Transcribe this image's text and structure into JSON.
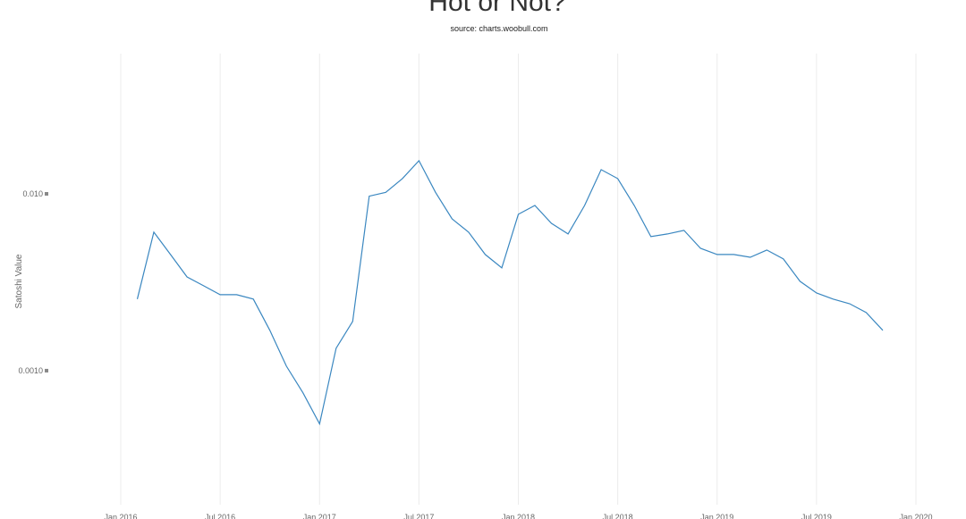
{
  "chart_data": {
    "type": "line",
    "title": "Hot or Not?",
    "subtitle": "source: charts.woobull.com",
    "y_label": "Satoshi Value",
    "y_scale": "log",
    "grid": true,
    "x": [
      "2016-02",
      "2016-03",
      "2016-04",
      "2016-05",
      "2016-06",
      "2016-07",
      "2016-08",
      "2016-09",
      "2016-10",
      "2016-11",
      "2016-12",
      "2017-01",
      "2017-02",
      "2017-03",
      "2017-04",
      "2017-05",
      "2017-06",
      "2017-07",
      "2017-08",
      "2017-09",
      "2017-10",
      "2017-11",
      "2017-12",
      "2018-01",
      "2018-02",
      "2018-03",
      "2018-04",
      "2018-05",
      "2018-06",
      "2018-07",
      "2018-08",
      "2018-09",
      "2018-10",
      "2018-11",
      "2018-12",
      "2019-01",
      "2019-02",
      "2019-03",
      "2019-04",
      "2019-05",
      "2019-06",
      "2019-07",
      "2019-08",
      "2019-09",
      "2019-10",
      "2019-11"
    ],
    "series": [
      {
        "name": "Satoshi Value",
        "color": "#3a87c0",
        "values": [
          0.00254,
          0.00607,
          0.00454,
          0.00339,
          0.00302,
          0.00269,
          0.00269,
          0.00254,
          0.00169,
          0.00106,
          0.00075,
          0.0005,
          0.00134,
          0.0019,
          0.0097,
          0.0102,
          0.0122,
          0.0154,
          0.0102,
          0.00722,
          0.00607,
          0.00454,
          0.00381,
          0.00766,
          0.0086,
          0.00681,
          0.00593,
          0.0086,
          0.0137,
          0.0122,
          0.0086,
          0.00573,
          0.00593,
          0.00621,
          0.00492,
          0.00454,
          0.00454,
          0.00438,
          0.00481,
          0.00428,
          0.0032,
          0.00275,
          0.00254,
          0.00239,
          0.00213,
          0.00169
        ]
      }
    ],
    "xlim": [
      "2016-01",
      "2020-01"
    ],
    "xticks": [
      {
        "value": "2016-01",
        "label": "Jan 2016"
      },
      {
        "value": "2016-07",
        "label": "Jul 2016"
      },
      {
        "value": "2017-01",
        "label": "Jan 2017"
      },
      {
        "value": "2017-07",
        "label": "Jul 2017"
      },
      {
        "value": "2018-01",
        "label": "Jan 2018"
      },
      {
        "value": "2018-07",
        "label": "Jul 2018"
      },
      {
        "value": "2019-01",
        "label": "Jan 2019"
      },
      {
        "value": "2019-07",
        "label": "Jul 2019"
      },
      {
        "value": "2020-01",
        "label": "Jan 2020"
      }
    ],
    "ylim": [
      0.000185,
      0.0621
    ],
    "yticks": [
      {
        "value": 0.01,
        "label": "0.010"
      },
      {
        "value": 0.001,
        "label": "0.0010"
      }
    ]
  }
}
